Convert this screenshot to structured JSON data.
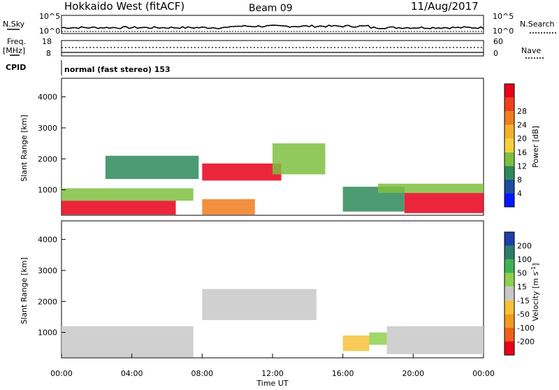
{
  "header": {
    "radar_title": "Hokkaido West (fitACF)",
    "beam": "Beam 09",
    "date": "11/Aug/2017"
  },
  "top_panel": {
    "left_label": "N.Sky",
    "right_label": "N.Search",
    "tick_high": "10^5",
    "tick_low": "10^0"
  },
  "freq_panel": {
    "left_label_1": "Freq.",
    "left_label_2": "[MHz]",
    "left_tick_high": "18",
    "left_tick_low": "8",
    "right_label": "Nave",
    "right_tick_high": "60",
    "right_tick_low": "0"
  },
  "cpid": {
    "label": "CPID",
    "mode": "normal (fast stereo) 153"
  },
  "axes": {
    "ylabel": "Slant Range [km]",
    "xlabel": "Time UT",
    "y_ticks": [
      "1000",
      "2000",
      "3000",
      "4000"
    ],
    "x_ticks": [
      "00:00",
      "04:00",
      "08:00",
      "12:00",
      "16:00",
      "20:00",
      "00:00"
    ]
  },
  "colorbars": {
    "power": {
      "label": "Power [dB]",
      "ticks": [
        "4",
        "8",
        "12",
        "16",
        "20",
        "24",
        "28"
      ],
      "colors": [
        "#0019ff",
        "#1c4f9c",
        "#2e8a5a",
        "#7fbf3f",
        "#f2d23a",
        "#f5b12a",
        "#f07d1e",
        "#f0401a",
        "#e8001a"
      ]
    },
    "velocity": {
      "label": "Velocity [m s",
      "label_sup": "-1",
      "label_end": "]",
      "ticks": [
        "200",
        "100",
        "50",
        "15",
        "-15",
        "-50",
        "-100",
        "-200"
      ],
      "colors": [
        "#1c3fa8",
        "#2e7d6a",
        "#3fb34f",
        "#8fd04f",
        "#c8c8c8",
        "#f5c23a",
        "#f29a1e",
        "#f0601a",
        "#e8001a"
      ]
    }
  },
  "chart_data": [
    {
      "type": "heatmap",
      "title": "",
      "quantity": "Power [dB]",
      "xlabel": "Time UT",
      "ylabel": "Slant Range [km]",
      "xlim": [
        0,
        24
      ],
      "ylim": [
        180,
        4600
      ],
      "colorscale": [
        4,
        28
      ],
      "regions": [
        {
          "t_start": 0.0,
          "t_end": 6.5,
          "range_min": 200,
          "range_max": 650,
          "power": 26
        },
        {
          "t_start": 0.0,
          "t_end": 7.5,
          "range_min": 650,
          "range_max": 1050,
          "power": 12
        },
        {
          "t_start": 2.5,
          "t_end": 7.8,
          "range_min": 1350,
          "range_max": 2100,
          "power": 10
        },
        {
          "t_start": 8.0,
          "t_end": 12.5,
          "range_min": 1300,
          "range_max": 1850,
          "power": 27
        },
        {
          "t_start": 8.0,
          "t_end": 11.0,
          "range_min": 200,
          "range_max": 700,
          "power": 22
        },
        {
          "t_start": 12.0,
          "t_end": 15.0,
          "range_min": 1500,
          "range_max": 2500,
          "power": 14
        },
        {
          "t_start": 16.0,
          "t_end": 19.5,
          "range_min": 300,
          "range_max": 1100,
          "power": 10
        },
        {
          "t_start": 19.5,
          "t_end": 24.0,
          "range_min": 250,
          "range_max": 900,
          "power": 28
        },
        {
          "t_start": 18.0,
          "t_end": 24.0,
          "range_min": 900,
          "range_max": 1200,
          "power": 12
        }
      ]
    },
    {
      "type": "heatmap",
      "title": "",
      "quantity": "Velocity [m s-1]",
      "xlabel": "Time UT",
      "ylabel": "Slant Range [km]",
      "xlim": [
        0,
        24
      ],
      "ylim": [
        180,
        4600
      ],
      "colorscale": [
        -200,
        200
      ],
      "regions": [
        {
          "t_start": 0.0,
          "t_end": 7.5,
          "range_min": 200,
          "range_max": 1200,
          "velocity": 0
        },
        {
          "t_start": 8.0,
          "t_end": 14.5,
          "range_min": 1400,
          "range_max": 2400,
          "velocity": 0
        },
        {
          "t_start": 16.0,
          "t_end": 17.5,
          "range_min": 400,
          "range_max": 900,
          "velocity": -40
        },
        {
          "t_start": 17.5,
          "t_end": 18.5,
          "range_min": 600,
          "range_max": 1000,
          "velocity": 40
        },
        {
          "t_start": 18.5,
          "t_end": 24.0,
          "range_min": 300,
          "range_max": 1200,
          "velocity": 0
        }
      ]
    }
  ]
}
